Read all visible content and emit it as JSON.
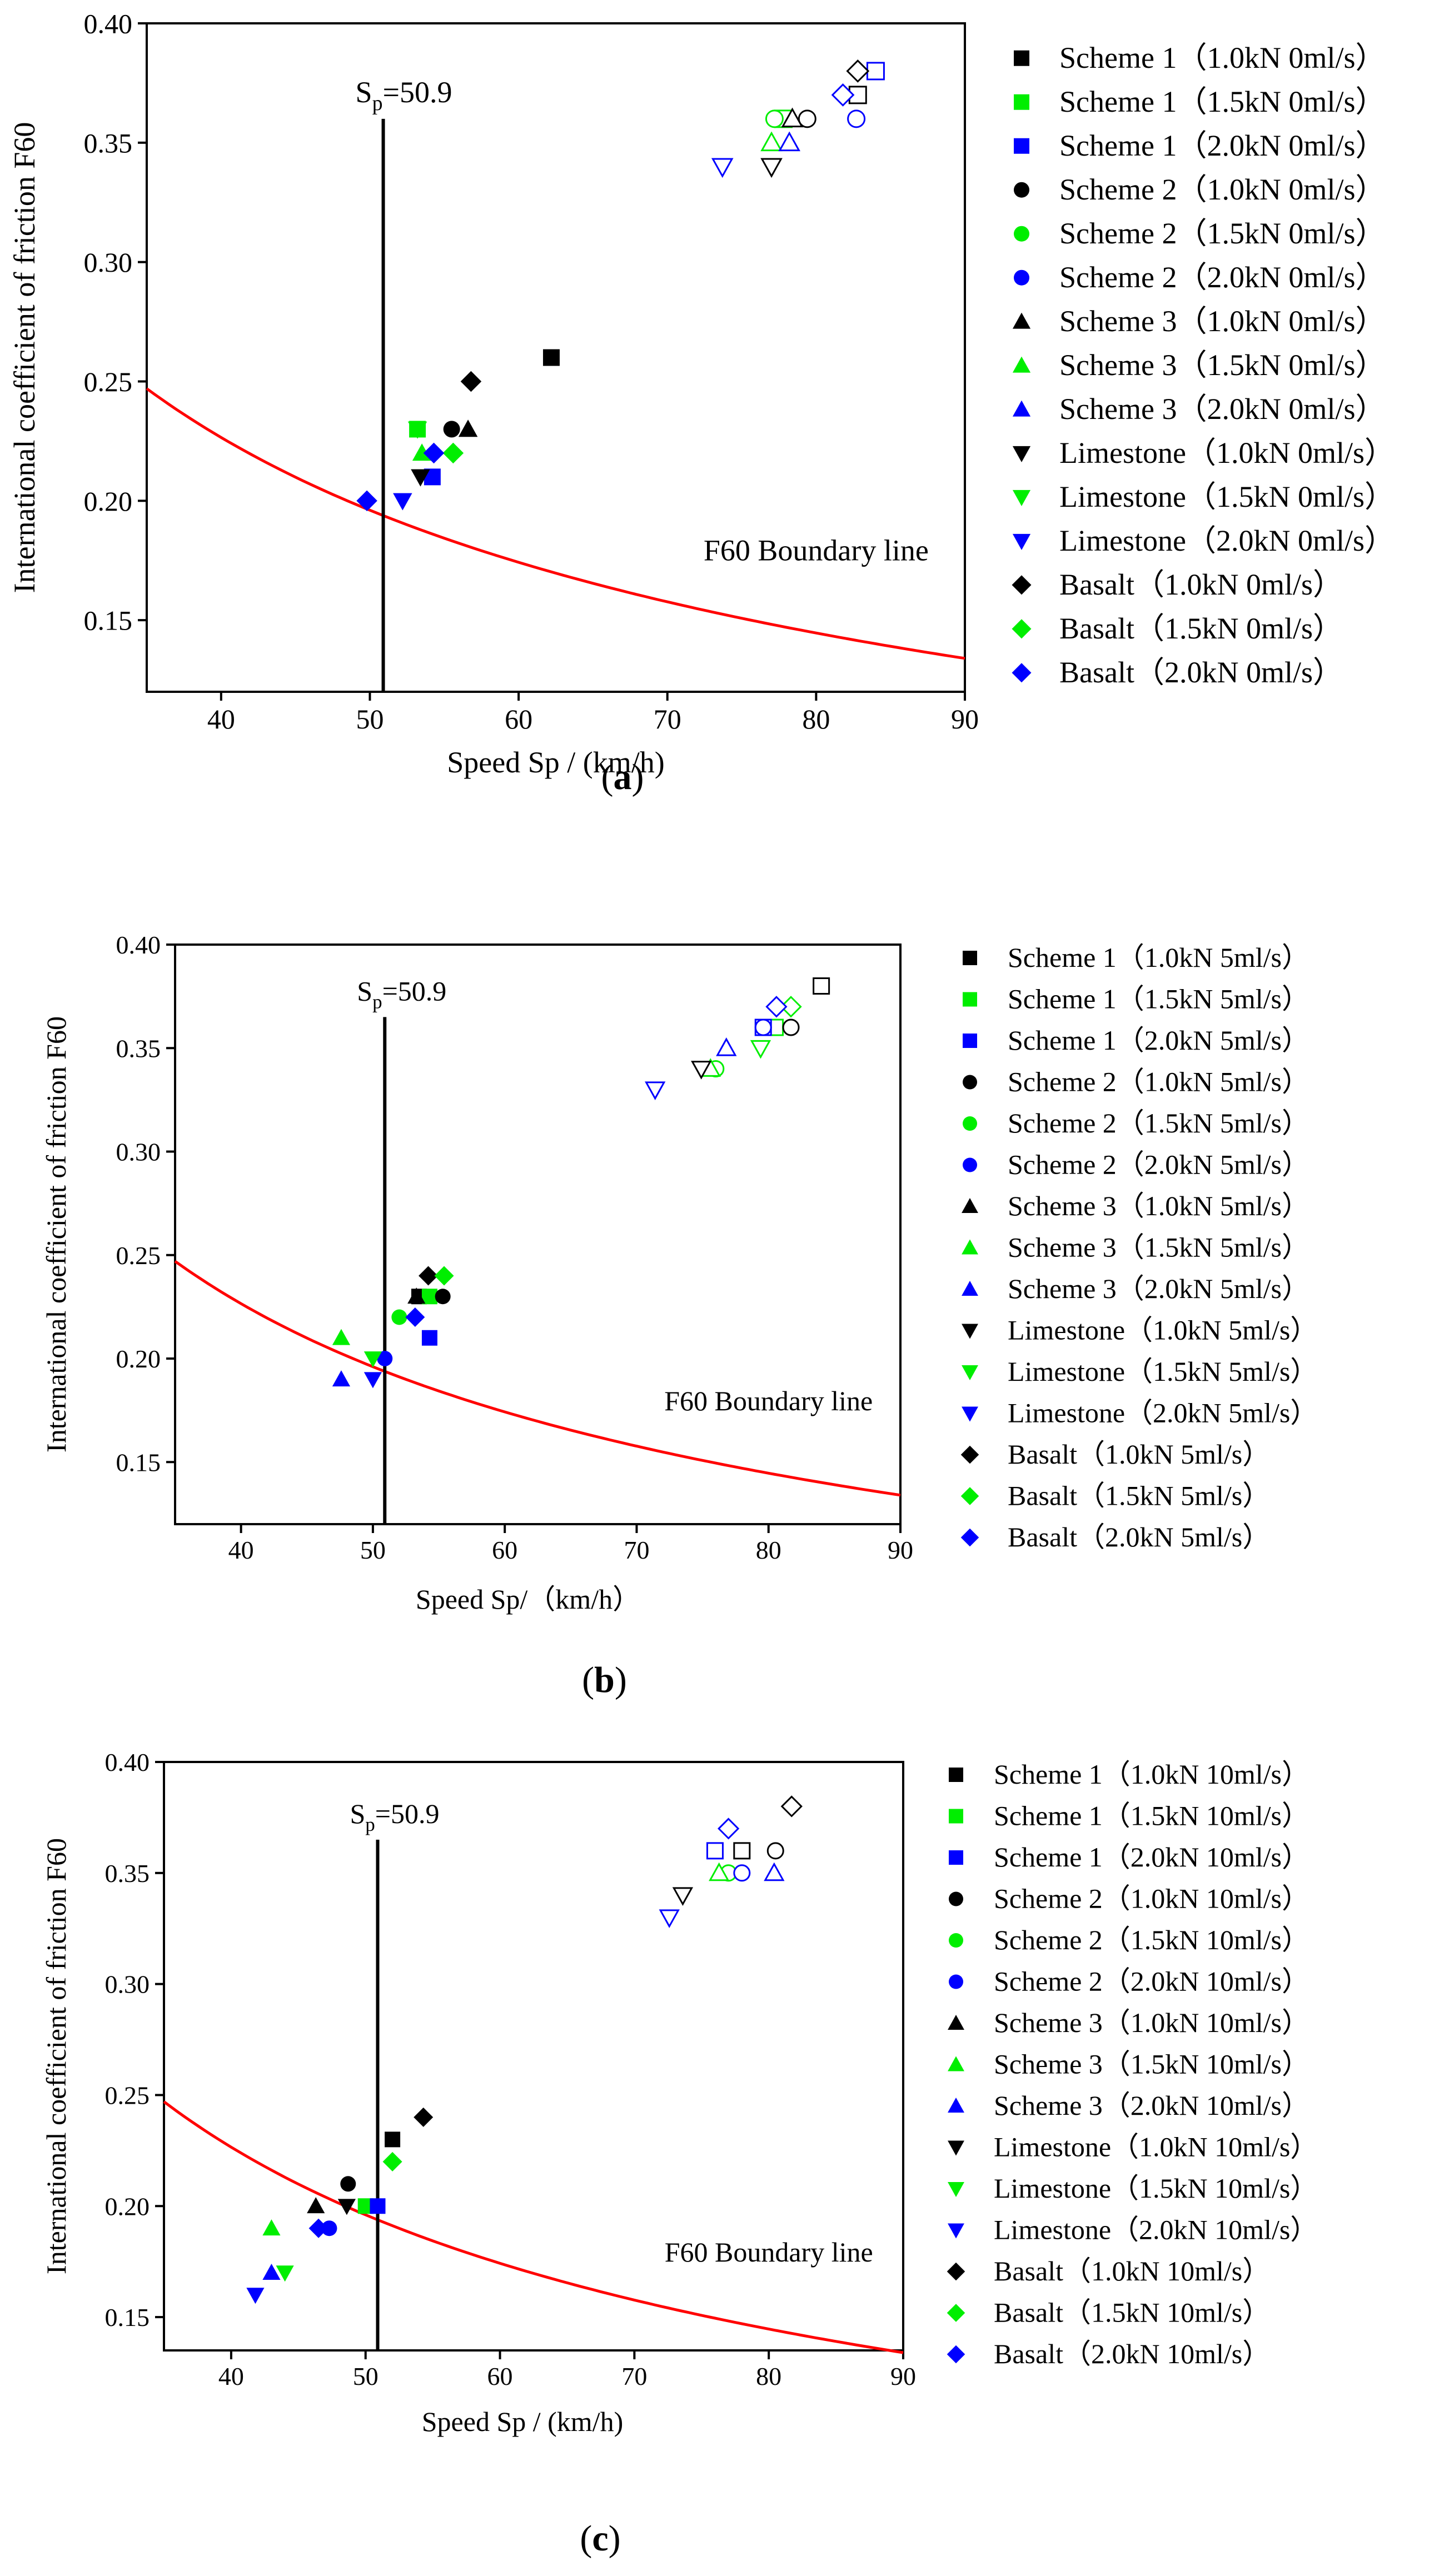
{
  "figure": {
    "series_colors": {
      "1.0": "#000000",
      "1.5": "#00ee00",
      "2.0": "#0000ff"
    },
    "boundary_color": "#ff0000",
    "panels": [
      {
        "label": "(a)",
        "label_letter": "a",
        "flow_text": "0ml/s",
        "sp_letter": "S",
        "sp_sub": "p",
        "sp_value": "=50.9",
        "sp": 50.9,
        "boundary_label": "F60 Boundary line"
      },
      {
        "label": "(b)",
        "label_letter": "b",
        "flow_text": "5ml/s",
        "sp_letter": "S",
        "sp_sub": "p",
        "sp_value": "=50.9",
        "sp": 50.9,
        "boundary_label": "F60 Boundary line"
      },
      {
        "label": "(c)",
        "label_letter": "c",
        "flow_text": "10ml/s",
        "sp_letter": "S",
        "sp_sub": "p",
        "sp_value": "=50.9",
        "sp": 50.9,
        "boundary_label": "F60 Boundary line"
      }
    ]
  },
  "chart_data": [
    {
      "type": "scatter",
      "title": "(a)",
      "xlabel": "Speed Sp / (km/h)",
      "ylabel": "International coefficient of friction F60",
      "xlim": [
        35,
        90
      ],
      "ylim": [
        0.12,
        0.4
      ],
      "xticks": [
        "40",
        "50",
        "60",
        "70",
        "80",
        "90"
      ],
      "yticks": [
        "0.15",
        "0.20",
        "0.25",
        "0.30",
        "0.35",
        "0.40"
      ],
      "vertical_line": {
        "label": "Sp=50.9",
        "x": 50.9,
        "y_top": 0.36
      },
      "boundary_curve": {
        "label": "F60 Boundary line",
        "x_range": [
          35,
          90
        ],
        "y_at_35": 0.247,
        "y_at_90": 0.134
      },
      "legend": [
        "Scheme 1（1.0kN 0ml/s）",
        "Scheme 1（1.5kN 0ml/s）",
        "Scheme 1（2.0kN 0ml/s）",
        "Scheme 2（1.0kN 0ml/s）",
        "Scheme 2（1.5kN 0ml/s）",
        "Scheme 2（2.0kN 0ml/s）",
        "Scheme 3（1.0kN 0ml/s）",
        "Scheme 3（1.5kN 0ml/s）",
        "Scheme 3（2.0kN 0ml/s）",
        "Limestone（1.0kN 0ml/s）",
        "Limestone（1.5kN 0ml/s）",
        "Limestone（2.0kN 0ml/s）",
        "Basalt（1.0kN 0ml/s）",
        "Basalt（1.5kN 0ml/s）",
        "Basalt（2.0kN 0ml/s）"
      ],
      "series": [
        {
          "name": "Scheme 1 1.0kN",
          "shape": "square",
          "load": "1.0",
          "filled": [
            [
              62.2,
              0.26
            ]
          ],
          "hollow": [
            [
              82.8,
              0.37
            ]
          ]
        },
        {
          "name": "Scheme 1 1.5kN",
          "shape": "square",
          "load": "1.5",
          "filled": [
            [
              53.2,
              0.23
            ]
          ],
          "hollow": [
            [
              77.8,
              0.36
            ]
          ]
        },
        {
          "name": "Scheme 1 2.0kN",
          "shape": "square",
          "load": "2.0",
          "filled": [
            [
              54.2,
              0.21
            ]
          ],
          "hollow": [
            [
              84.0,
              0.38
            ]
          ]
        },
        {
          "name": "Scheme 2 1.0kN",
          "shape": "circle",
          "load": "1.0",
          "filled": [
            [
              55.5,
              0.23
            ]
          ],
          "hollow": [
            [
              79.4,
              0.36
            ]
          ]
        },
        {
          "name": "Scheme 2 1.5kN",
          "shape": "circle",
          "load": "1.5",
          "filled": [],
          "hollow": [
            [
              77.2,
              0.36
            ]
          ]
        },
        {
          "name": "Scheme 2 2.0kN",
          "shape": "circle",
          "load": "2.0",
          "filled": [],
          "hollow": [
            [
              82.7,
              0.36
            ]
          ]
        },
        {
          "name": "Scheme 3 1.0kN",
          "shape": "triangle",
          "load": "1.0",
          "filled": [
            [
              56.6,
              0.23
            ]
          ],
          "hollow": [
            [
              78.4,
              0.36
            ]
          ]
        },
        {
          "name": "Scheme 3 1.5kN",
          "shape": "triangle",
          "load": "1.5",
          "filled": [
            [
              53.5,
              0.22
            ]
          ],
          "hollow": [
            [
              77.0,
              0.35
            ]
          ]
        },
        {
          "name": "Scheme 3 2.0kN",
          "shape": "triangle",
          "load": "2.0",
          "filled": [],
          "hollow": [
            [
              78.2,
              0.35
            ]
          ]
        },
        {
          "name": "Limestone 1.0kN",
          "shape": "down-triangle",
          "load": "1.0",
          "filled": [
            [
              53.4,
              0.21
            ]
          ],
          "hollow": [
            [
              77.0,
              0.34
            ]
          ]
        },
        {
          "name": "Limestone 1.5kN",
          "shape": "down-triangle",
          "load": "1.5",
          "filled": [
            [
              53.2,
              0.23
            ]
          ],
          "hollow": []
        },
        {
          "name": "Limestone 2.0kN",
          "shape": "down-triangle",
          "load": "2.0",
          "filled": [
            [
              52.2,
              0.2
            ]
          ],
          "hollow": [
            [
              73.7,
              0.34
            ]
          ]
        },
        {
          "name": "Basalt 1.0kN",
          "shape": "diamond",
          "load": "1.0",
          "filled": [
            [
              56.8,
              0.25
            ]
          ],
          "hollow": [
            [
              82.8,
              0.38
            ]
          ]
        },
        {
          "name": "Basalt 1.5kN",
          "shape": "diamond",
          "load": "1.5",
          "filled": [
            [
              55.6,
              0.22
            ]
          ],
          "hollow": []
        },
        {
          "name": "Basalt 2.0kN",
          "shape": "diamond",
          "load": "2.0",
          "filled": [
            [
              49.8,
              0.2
            ],
            [
              54.3,
              0.22
            ]
          ],
          "hollow": [
            [
              81.8,
              0.37
            ]
          ]
        }
      ]
    },
    {
      "type": "scatter",
      "title": "(b)",
      "xlabel": "Speed Sp/（km/h）",
      "ylabel": "International coefficient of friction F60",
      "xlim": [
        35,
        90
      ],
      "ylim": [
        0.12,
        0.4
      ],
      "xticks": [
        "40",
        "50",
        "60",
        "70",
        "80",
        "90"
      ],
      "yticks": [
        "0.15",
        "0.20",
        "0.25",
        "0.30",
        "0.35",
        "0.40"
      ],
      "vertical_line": {
        "label": "Sp=50.9",
        "x": 50.9,
        "y_top": 0.365
      },
      "boundary_curve": {
        "label": "F60 Boundary line",
        "x_range": [
          35,
          90
        ],
        "y_at_35": 0.247,
        "y_at_90": 0.134
      },
      "legend": [
        "Scheme 1（1.0kN 5ml/s）",
        "Scheme 1（1.5kN 5ml/s）",
        "Scheme 1（2.0kN 5ml/s）",
        "Scheme 2（1.0kN 5ml/s）",
        "Scheme 2（1.5kN 5ml/s）",
        "Scheme 2（2.0kN 5ml/s）",
        "Scheme 3（1.0kN 5ml/s）",
        "Scheme 3（1.5kN 5ml/s）",
        "Scheme 3（2.0kN 5ml/s）",
        "Limestone（1.0kN 5ml/s）",
        "Limestone（1.5kN 5ml/s）",
        "Limestone（2.0kN 5ml/s）",
        "Basalt（1.0kN 5ml/s）",
        "Basalt（1.5kN 5ml/s）",
        "Basalt（2.0kN 5ml/s）"
      ],
      "series": [
        {
          "name": "Scheme 1 1.0kN",
          "shape": "square",
          "load": "1.0",
          "filled": [
            [
              53.5,
              0.23
            ]
          ],
          "hollow": [
            [
              84.0,
              0.38
            ]
          ]
        },
        {
          "name": "Scheme 1 1.5kN",
          "shape": "square",
          "load": "1.5",
          "filled": [
            [
              54.3,
              0.23
            ]
          ],
          "hollow": [
            [
              80.5,
              0.36
            ]
          ]
        },
        {
          "name": "Scheme 1 2.0kN",
          "shape": "square",
          "load": "2.0",
          "filled": [
            [
              54.3,
              0.21
            ]
          ],
          "hollow": [
            [
              79.6,
              0.36
            ]
          ]
        },
        {
          "name": "Scheme 2 1.0kN",
          "shape": "circle",
          "load": "1.0",
          "filled": [
            [
              55.3,
              0.23
            ]
          ],
          "hollow": [
            [
              81.7,
              0.36
            ]
          ]
        },
        {
          "name": "Scheme 2 1.5kN",
          "shape": "circle",
          "load": "1.5",
          "filled": [
            [
              52.0,
              0.22
            ]
          ],
          "hollow": [
            [
              76.0,
              0.34
            ]
          ]
        },
        {
          "name": "Scheme 2 2.0kN",
          "shape": "circle",
          "load": "2.0",
          "filled": [
            [
              50.9,
              0.2
            ]
          ],
          "hollow": [
            [
              79.6,
              0.36
            ]
          ]
        },
        {
          "name": "Scheme 3 1.0kN",
          "shape": "triangle",
          "load": "1.0",
          "filled": [
            [
              53.3,
              0.23
            ]
          ],
          "hollow": []
        },
        {
          "name": "Scheme 3 1.5kN",
          "shape": "triangle",
          "load": "1.5",
          "filled": [
            [
              47.6,
              0.21
            ]
          ],
          "hollow": [
            [
              75.6,
              0.34
            ]
          ]
        },
        {
          "name": "Scheme 3 2.0kN",
          "shape": "triangle",
          "load": "2.0",
          "filled": [
            [
              47.6,
              0.19
            ]
          ],
          "hollow": [
            [
              76.8,
              0.35
            ]
          ]
        },
        {
          "name": "Limestone 1.0kN",
          "shape": "down-triangle",
          "load": "1.0",
          "filled": [],
          "hollow": [
            [
              74.9,
              0.34
            ]
          ]
        },
        {
          "name": "Limestone 1.5kN",
          "shape": "down-triangle",
          "load": "1.5",
          "filled": [
            [
              50.0,
              0.2
            ]
          ],
          "hollow": [
            [
              79.4,
              0.35
            ]
          ]
        },
        {
          "name": "Limestone 2.0kN",
          "shape": "down-triangle",
          "load": "2.0",
          "filled": [
            [
              50.0,
              0.19
            ]
          ],
          "hollow": [
            [
              71.4,
              0.33
            ]
          ]
        },
        {
          "name": "Basalt 1.0kN",
          "shape": "diamond",
          "load": "1.0",
          "filled": [
            [
              54.2,
              0.24
            ]
          ],
          "hollow": []
        },
        {
          "name": "Basalt 1.5kN",
          "shape": "diamond",
          "load": "1.5",
          "filled": [
            [
              55.4,
              0.24
            ]
          ],
          "hollow": [
            [
              81.7,
              0.37
            ]
          ]
        },
        {
          "name": "Basalt 2.0kN",
          "shape": "diamond",
          "load": "2.0",
          "filled": [
            [
              53.2,
              0.22
            ]
          ],
          "hollow": [
            [
              80.6,
              0.37
            ]
          ]
        }
      ]
    },
    {
      "type": "scatter",
      "title": "(c)",
      "xlabel": "Speed Sp / (km/h)",
      "ylabel": "International coefficient of friction F60",
      "xlim": [
        35,
        90
      ],
      "ylim": [
        0.135,
        0.4
      ],
      "xticks": [
        "40",
        "50",
        "60",
        "70",
        "80",
        "90"
      ],
      "yticks": [
        "0.15",
        "0.20",
        "0.25",
        "0.30",
        "0.35",
        "0.40"
      ],
      "vertical_line": {
        "label": "Sp=50.9",
        "x": 50.9,
        "y_top": 0.365
      },
      "boundary_curve": {
        "label": "F60 Boundary line",
        "x_range": [
          35,
          90
        ],
        "y_at_35": 0.247,
        "y_at_90": 0.134
      },
      "legend": [
        "Scheme 1（1.0kN 10ml/s）",
        "Scheme 1（1.5kN 10ml/s）",
        "Scheme 1（2.0kN 10ml/s）",
        "Scheme 2（1.0kN 10ml/s）",
        "Scheme 2（1.5kN 10ml/s）",
        "Scheme 2（2.0kN 10ml/s）",
        "Scheme 3（1.0kN 10ml/s）",
        "Scheme 3（1.5kN 10ml/s）",
        "Scheme 3（2.0kN 10ml/s）",
        "Limestone（1.0kN 10ml/s）",
        "Limestone（1.5kN 10ml/s）",
        "Limestone（2.0kN 10ml/s）",
        "Basalt（1.0kN 10ml/s）",
        "Basalt（1.5kN 10ml/s）",
        "Basalt（2.0kN 10ml/s）"
      ],
      "series": [
        {
          "name": "Scheme 1 1.0kN",
          "shape": "square",
          "load": "1.0",
          "filled": [
            [
              52.0,
              0.23
            ]
          ],
          "hollow": [
            [
              78.0,
              0.36
            ]
          ]
        },
        {
          "name": "Scheme 1 1.5kN",
          "shape": "square",
          "load": "1.5",
          "filled": [
            [
              50.0,
              0.2
            ]
          ],
          "hollow": []
        },
        {
          "name": "Scheme 1 2.0kN",
          "shape": "square",
          "load": "2.0",
          "filled": [
            [
              50.9,
              0.2
            ]
          ],
          "hollow": [
            [
              76.0,
              0.36
            ]
          ]
        },
        {
          "name": "Scheme 2 1.0kN",
          "shape": "circle",
          "load": "1.0",
          "filled": [
            [
              48.7,
              0.21
            ]
          ],
          "hollow": [
            [
              80.5,
              0.36
            ]
          ]
        },
        {
          "name": "Scheme 2 1.5kN",
          "shape": "circle",
          "load": "1.5",
          "filled": [],
          "hollow": [
            [
              77.0,
              0.35
            ]
          ]
        },
        {
          "name": "Scheme 2 2.0kN",
          "shape": "circle",
          "load": "2.0",
          "filled": [
            [
              47.3,
              0.19
            ]
          ],
          "hollow": [
            [
              78.0,
              0.35
            ]
          ]
        },
        {
          "name": "Scheme 3 1.0kN",
          "shape": "triangle",
          "load": "1.0",
          "filled": [
            [
              46.3,
              0.2
            ]
          ],
          "hollow": []
        },
        {
          "name": "Scheme 3 1.5kN",
          "shape": "triangle",
          "load": "1.5",
          "filled": [
            [
              43.0,
              0.19
            ]
          ],
          "hollow": [
            [
              76.3,
              0.35
            ]
          ]
        },
        {
          "name": "Scheme 3 2.0kN",
          "shape": "triangle",
          "load": "2.0",
          "filled": [
            [
              43.0,
              0.17
            ]
          ],
          "hollow": [
            [
              80.4,
              0.35
            ]
          ]
        },
        {
          "name": "Limestone 1.0kN",
          "shape": "down-triangle",
          "load": "1.0",
          "filled": [
            [
              48.6,
              0.2
            ]
          ],
          "hollow": [
            [
              73.6,
              0.34
            ]
          ]
        },
        {
          "name": "Limestone 1.5kN",
          "shape": "down-triangle",
          "load": "1.5",
          "filled": [
            [
              44.0,
              0.17
            ]
          ],
          "hollow": []
        },
        {
          "name": "Limestone 2.0kN",
          "shape": "down-triangle",
          "load": "2.0",
          "filled": [
            [
              41.8,
              0.16
            ]
          ],
          "hollow": [
            [
              72.6,
              0.33
            ]
          ]
        },
        {
          "name": "Basalt 1.0kN",
          "shape": "diamond",
          "load": "1.0",
          "filled": [
            [
              54.3,
              0.24
            ]
          ],
          "hollow": [
            [
              81.7,
              0.38
            ]
          ]
        },
        {
          "name": "Basalt 1.5kN",
          "shape": "diamond",
          "load": "1.5",
          "filled": [
            [
              52.0,
              0.22
            ]
          ],
          "hollow": []
        },
        {
          "name": "Basalt 2.0kN",
          "shape": "diamond",
          "load": "2.0",
          "filled": [
            [
              46.5,
              0.19
            ]
          ],
          "hollow": [
            [
              77.0,
              0.37
            ]
          ]
        }
      ]
    }
  ]
}
